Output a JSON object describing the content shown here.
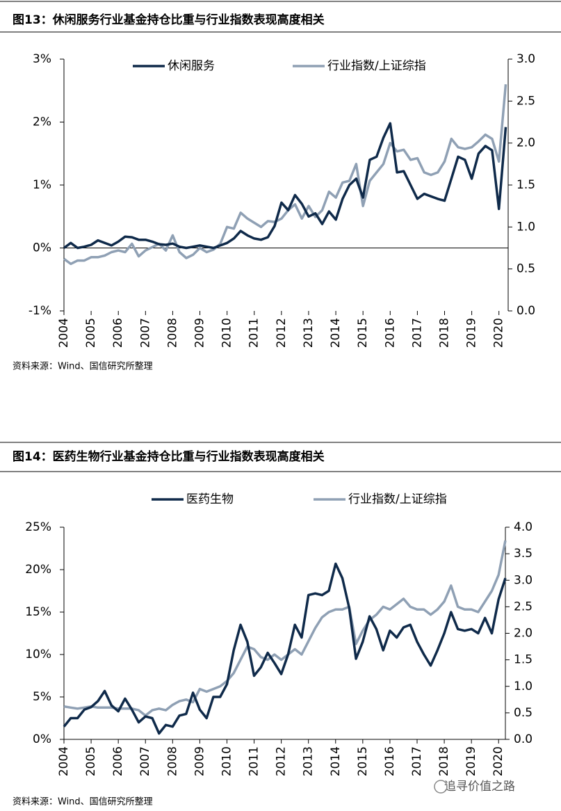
{
  "chart_data": [
    {
      "type": "line",
      "title": "图13：休闲服务行业基金持仓比重与行业指数表现高度相关",
      "source": "资料来源：Wind、国信研究所整理",
      "x": [
        2004,
        2004.25,
        2004.5,
        2004.75,
        2005,
        2005.25,
        2005.5,
        2005.75,
        2006,
        2006.25,
        2006.5,
        2006.75,
        2007,
        2007.25,
        2007.5,
        2007.75,
        2008,
        2008.25,
        2008.5,
        2008.75,
        2009,
        2009.25,
        2009.5,
        2009.75,
        2010,
        2010.25,
        2010.5,
        2010.75,
        2011,
        2011.25,
        2011.5,
        2011.75,
        2012,
        2012.25,
        2012.5,
        2012.75,
        2013,
        2013.25,
        2013.5,
        2013.75,
        2014,
        2014.25,
        2014.5,
        2014.75,
        2015,
        2015.25,
        2015.5,
        2015.75,
        2016,
        2016.25,
        2016.5,
        2016.75,
        2017,
        2017.25,
        2017.5,
        2017.75,
        2018,
        2018.25,
        2018.5,
        2018.75,
        2019,
        2019.25,
        2019.5,
        2019.75,
        2020,
        2020.25
      ],
      "series": [
        {
          "name": "休闲服务",
          "color": "#0f2a4a",
          "axis": "y",
          "values": [
            0,
            0.08,
            0.0,
            0.02,
            0.05,
            0.12,
            0.08,
            0.04,
            0.1,
            0.18,
            0.17,
            0.13,
            0.13,
            0.1,
            0.06,
            0.05,
            0.07,
            0.02,
            0.0,
            0.02,
            0.04,
            0.02,
            0.0,
            0.04,
            0.08,
            0.15,
            0.27,
            0.2,
            0.15,
            0.13,
            0.17,
            0.35,
            0.72,
            0.6,
            0.84,
            0.7,
            0.5,
            0.55,
            0.38,
            0.58,
            0.45,
            0.78,
            1.0,
            1.1,
            0.8,
            1.4,
            1.45,
            1.75,
            1.98,
            1.2,
            1.22,
            1.0,
            0.78,
            0.86,
            0.82,
            0.78,
            0.75,
            1.1,
            1.45,
            1.4,
            1.1,
            1.5,
            1.62,
            1.55,
            0.62,
            1.92
          ]
        },
        {
          "name": "行业指数/上证综指",
          "color": "#8fa0b4",
          "axis": "y2",
          "values": [
            0.62,
            0.56,
            0.6,
            0.6,
            0.64,
            0.64,
            0.66,
            0.7,
            0.72,
            0.7,
            0.8,
            0.65,
            0.72,
            0.76,
            0.8,
            0.72,
            0.9,
            0.7,
            0.63,
            0.67,
            0.75,
            0.7,
            0.73,
            0.8,
            1.0,
            0.98,
            1.17,
            1.1,
            1.05,
            1.0,
            1.07,
            1.06,
            1.1,
            1.2,
            1.27,
            1.1,
            1.25,
            1.12,
            1.2,
            1.42,
            1.35,
            1.53,
            1.55,
            1.75,
            1.25,
            1.55,
            1.65,
            1.75,
            2.0,
            1.9,
            1.92,
            1.8,
            1.82,
            1.65,
            1.62,
            1.65,
            1.78,
            2.05,
            1.95,
            1.93,
            1.95,
            2.02,
            2.1,
            2.05,
            1.78,
            2.7
          ]
        }
      ],
      "xlim": [
        2004,
        2020.34
      ],
      "xticks": [
        2004,
        2005,
        2006,
        2007,
        2008,
        2009,
        2010,
        2011,
        2012,
        2013,
        2014,
        2015,
        2016,
        2017,
        2018,
        2019,
        2020
      ],
      "ylim": [
        -1,
        3
      ],
      "yticks": [
        {
          "value": -1,
          "label": "-1%"
        },
        {
          "value": 0,
          "label": "0%"
        },
        {
          "value": 1,
          "label": "1%"
        },
        {
          "value": 2,
          "label": "2%"
        },
        {
          "value": 3,
          "label": "3%"
        }
      ],
      "y2lim": [
        0,
        3
      ],
      "y2ticks": [
        {
          "value": 0,
          "label": "0.0"
        },
        0.5,
        {
          "value": 1,
          "label": "1.0"
        },
        1.5,
        {
          "value": 2,
          "label": "2.0"
        },
        2.5,
        {
          "value": 3,
          "label": "3.0"
        }
      ],
      "legend": "top"
    },
    {
      "type": "line",
      "title": "图14：医药生物行业基金持仓比重与行业指数表现高度相关",
      "source": "资料来源：Wind、国信研究所整理",
      "x": [
        2004,
        2004.25,
        2004.5,
        2004.75,
        2005,
        2005.25,
        2005.5,
        2005.75,
        2006,
        2006.25,
        2006.5,
        2006.75,
        2007,
        2007.25,
        2007.5,
        2007.75,
        2008,
        2008.25,
        2008.5,
        2008.75,
        2009,
        2009.25,
        2009.5,
        2009.75,
        2010,
        2010.25,
        2010.5,
        2010.75,
        2011,
        2011.25,
        2011.5,
        2011.75,
        2012,
        2012.25,
        2012.5,
        2012.75,
        2013,
        2013.25,
        2013.5,
        2013.75,
        2014,
        2014.25,
        2014.5,
        2014.75,
        2015,
        2015.25,
        2015.5,
        2015.75,
        2016,
        2016.25,
        2016.5,
        2016.75,
        2017,
        2017.25,
        2017.5,
        2017.75,
        2018,
        2018.25,
        2018.5,
        2018.75,
        2019,
        2019.25,
        2019.5,
        2019.75,
        2020,
        2020.25
      ],
      "series": [
        {
          "name": "医药生物",
          "color": "#0f2a4a",
          "axis": "y",
          "values": [
            1.5,
            2.5,
            2.5,
            3.5,
            3.8,
            4.5,
            5.7,
            4.0,
            3.3,
            4.8,
            3.5,
            2.0,
            2.7,
            2.5,
            0.7,
            1.7,
            1.5,
            2.8,
            3.0,
            5.5,
            3.5,
            2.5,
            5.0,
            5.0,
            6.5,
            10.5,
            13.5,
            11.5,
            7.5,
            8.5,
            10.2,
            9.0,
            7.7,
            10.0,
            13.5,
            12.0,
            17.0,
            17.2,
            17.0,
            17.5,
            20.7,
            19.0,
            15.5,
            9.5,
            11.5,
            14.5,
            13.0,
            10.5,
            12.8,
            12.0,
            13.2,
            13.5,
            11.5,
            10.0,
            8.7,
            10.5,
            12.5,
            15.0,
            13.0,
            12.8,
            13.0,
            12.5,
            14.3,
            12.5,
            16.5,
            19.0
          ]
        },
        {
          "name": "行业指数/上证综指",
          "color": "#8fa0b4",
          "axis": "y2",
          "values": [
            0.62,
            0.6,
            0.58,
            0.6,
            0.62,
            0.6,
            0.6,
            0.6,
            0.58,
            0.58,
            0.58,
            0.55,
            0.45,
            0.55,
            0.58,
            0.55,
            0.65,
            0.72,
            0.75,
            0.7,
            0.95,
            0.9,
            0.95,
            1.0,
            1.1,
            1.25,
            1.5,
            1.75,
            1.7,
            1.55,
            1.5,
            1.6,
            1.5,
            1.6,
            1.7,
            1.6,
            1.85,
            2.1,
            2.3,
            2.4,
            2.45,
            2.45,
            2.5,
            1.8,
            2.05,
            2.25,
            2.35,
            2.5,
            2.45,
            2.55,
            2.65,
            2.5,
            2.45,
            2.45,
            2.35,
            2.45,
            2.6,
            2.9,
            2.5,
            2.45,
            2.45,
            2.4,
            2.6,
            2.8,
            3.1,
            3.75
          ]
        }
      ],
      "xlim": [
        2004,
        2020.25
      ],
      "xticks": [
        2004,
        2005,
        2006,
        2007,
        2008,
        2009,
        2010,
        2011,
        2012,
        2013,
        2014,
        2015,
        2016,
        2017,
        2018,
        2019,
        2020
      ],
      "ylim": [
        0,
        25
      ],
      "yticks": [
        {
          "value": 0,
          "label": "0%"
        },
        {
          "value": 5,
          "label": "5%"
        },
        {
          "value": 10,
          "label": "10%"
        },
        {
          "value": 15,
          "label": "15%"
        },
        {
          "value": 20,
          "label": "20%"
        },
        {
          "value": 25,
          "label": "25%"
        }
      ],
      "y2lim": [
        0,
        4
      ],
      "y2ticks": [
        {
          "value": 0,
          "label": "0.0"
        },
        0.5,
        {
          "value": 1,
          "label": "1.0"
        },
        1.5,
        {
          "value": 2,
          "label": "2.0"
        },
        2.5,
        {
          "value": 3,
          "label": "3.0"
        },
        3.5,
        {
          "value": 4,
          "label": "4.0"
        }
      ],
      "legend": "top"
    }
  ],
  "watermark": "追寻价值之路"
}
